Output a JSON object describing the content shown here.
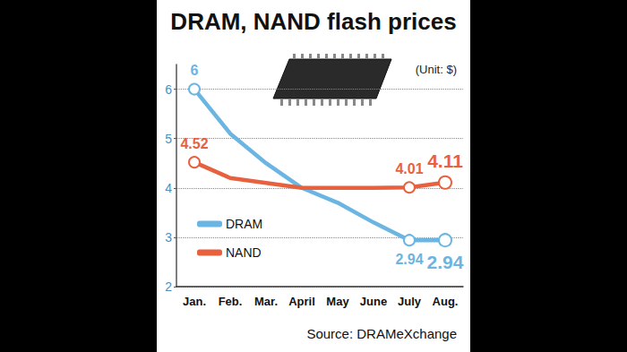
{
  "chart_data": {
    "type": "line",
    "title": "DRAM, NAND flash prices",
    "subtitle": "(Unit: $)",
    "source": "Source: DRAMeXchange",
    "categories": [
      "Jan.",
      "Feb.",
      "Mar.",
      "April",
      "May",
      "June",
      "July",
      "Aug."
    ],
    "series": [
      {
        "name": "DRAM",
        "color": "#6bb5e3",
        "values": [
          6,
          5.1,
          4.5,
          4.0,
          3.7,
          3.3,
          2.94,
          2.94
        ],
        "value_labels": [
          "6",
          null,
          null,
          null,
          null,
          null,
          "2.94",
          "2.94"
        ]
      },
      {
        "name": "NAND",
        "color": "#e8613f",
        "values": [
          4.52,
          4.2,
          4.1,
          4.0,
          4.0,
          4.0,
          4.01,
          4.11
        ],
        "value_labels": [
          "4.52",
          null,
          null,
          null,
          null,
          null,
          "4.01",
          "4.11"
        ]
      }
    ],
    "ylim": [
      2,
      6.5
    ],
    "yticks": [
      2,
      3,
      4,
      5,
      6
    ],
    "grid": true,
    "legend": "lower left",
    "data_labels": true,
    "marker": "circle"
  }
}
